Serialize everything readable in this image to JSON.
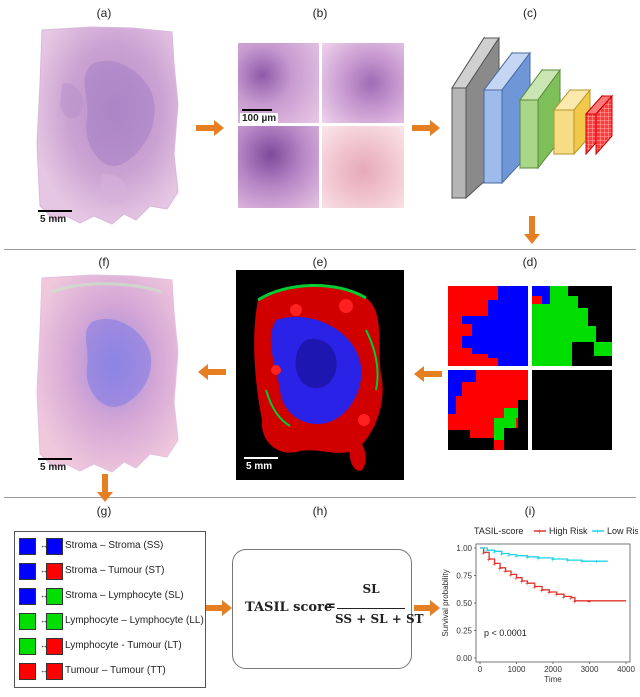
{
  "panels": {
    "a": "(a)",
    "b": "(b)",
    "c": "(c)",
    "d": "(d)",
    "e": "(e)",
    "f": "(f)",
    "g": "(g)",
    "h": "(h)",
    "i": "(i)"
  },
  "scale_bars": {
    "a": "5 mm",
    "b": "100 µm",
    "e": "5 mm",
    "f": "5 mm"
  },
  "colors": {
    "stroma": "#0000ff",
    "lymphocyte": "#00dd00",
    "tumour": "#ff0000",
    "arrow": "#e67e22",
    "high_risk": "#e0342b",
    "low_risk": "#22d3e6"
  },
  "legend": [
    {
      "left": "stroma",
      "right": "stroma",
      "label": "Stroma – Stroma (SS)"
    },
    {
      "left": "stroma",
      "right": "tumour",
      "label": "Stroma – Tumour (ST)"
    },
    {
      "left": "stroma",
      "right": "lymphocyte",
      "label": "Stroma – Lymphocyte (SL)"
    },
    {
      "left": "lymphocyte",
      "right": "lymphocyte",
      "label": "Lymphocyte – Lymphocyte (LL)"
    },
    {
      "left": "lymphocyte",
      "right": "tumour",
      "label": "Lymphocyte  - Tumour (LT)"
    },
    {
      "left": "tumour",
      "right": "tumour",
      "label": "Tumour – Tumour (TT)"
    }
  ],
  "formula": {
    "label": "TASIL score",
    "equals": "=",
    "numerator": "SL",
    "denominator": "SS + SL + ST"
  },
  "chart_data": {
    "type": "line",
    "title": "",
    "legend_title": "TASIL-score",
    "legend_placement": "top",
    "xlabel": "Time",
    "ylabel": "Survival probability",
    "xlim": [
      0,
      4000
    ],
    "ylim": [
      0,
      1
    ],
    "x_ticks": [
      "0",
      "1000",
      "2000",
      "3000",
      "4000"
    ],
    "y_ticks": [
      "0.00",
      "0.25",
      "0.50",
      "0.75",
      "1.00"
    ],
    "annotation": "p < 0.0001",
    "series": [
      {
        "name": "High Risk",
        "color": "#e0342b",
        "x": [
          0,
          100,
          250,
          400,
          550,
          700,
          850,
          1000,
          1150,
          1300,
          1500,
          1700,
          1900,
          2100,
          2300,
          2500,
          2600,
          3000,
          4000
        ],
        "y": [
          1.0,
          0.96,
          0.9,
          0.86,
          0.82,
          0.79,
          0.76,
          0.73,
          0.7,
          0.68,
          0.65,
          0.62,
          0.6,
          0.58,
          0.56,
          0.55,
          0.52,
          0.52,
          0.52
        ]
      },
      {
        "name": "Low Risk",
        "color": "#22d3e6",
        "x": [
          0,
          200,
          400,
          600,
          800,
          1000,
          1300,
          1600,
          2000,
          2400,
          2800,
          3200,
          3500
        ],
        "y": [
          1.0,
          0.98,
          0.97,
          0.95,
          0.94,
          0.93,
          0.92,
          0.91,
          0.9,
          0.89,
          0.88,
          0.88,
          0.88
        ]
      }
    ]
  }
}
